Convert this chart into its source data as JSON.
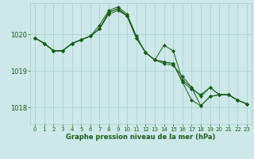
{
  "xlabel": "Graphe pression niveau de la mer (hPa)",
  "background_color": "#cce8e8",
  "grid_color": "#aacccc",
  "line_color": "#1a5c1a",
  "marker_color": "#1a5c1a",
  "xlim": [
    -0.5,
    23.5
  ],
  "ylim": [
    1017.55,
    1020.85
  ],
  "yticks": [
    1018,
    1019,
    1020
  ],
  "xticks": [
    0,
    1,
    2,
    3,
    4,
    5,
    6,
    7,
    8,
    9,
    10,
    11,
    12,
    13,
    14,
    15,
    16,
    17,
    18,
    19,
    20,
    21,
    22,
    23
  ],
  "series": [
    [
      1019.9,
      1019.75,
      1019.55,
      1019.55,
      1019.75,
      1019.85,
      1019.95,
      1020.15,
      1020.55,
      1020.65,
      1020.5,
      1019.9,
      1019.5,
      1019.3,
      1019.2,
      1019.15,
      1018.85,
      1018.55,
      1018.05,
      1018.3,
      1018.35,
      1018.35,
      1018.2,
      1018.1
    ],
    [
      1019.9,
      1019.75,
      1019.55,
      1019.55,
      1019.75,
      1019.85,
      1019.95,
      1020.15,
      1020.6,
      1020.7,
      1020.5,
      1019.9,
      1019.5,
      1019.3,
      1019.25,
      1019.2,
      1018.7,
      1018.5,
      1018.35,
      1018.55,
      1018.35,
      1018.35,
      1018.2,
      1018.1
    ],
    [
      1019.9,
      1019.75,
      1019.55,
      1019.55,
      1019.75,
      1019.85,
      1019.95,
      1020.15,
      1020.6,
      1020.7,
      1020.5,
      1019.9,
      1019.5,
      1019.3,
      1019.25,
      1019.2,
      1018.7,
      1018.2,
      1018.05,
      1018.3,
      1018.35,
      1018.35,
      1018.2,
      1018.1
    ],
    [
      1019.9,
      1019.75,
      1019.55,
      1019.55,
      1019.75,
      1019.85,
      1019.95,
      1020.25,
      1020.65,
      1020.75,
      1020.55,
      1019.95,
      1019.5,
      1019.3,
      1019.7,
      1019.55,
      1018.75,
      1018.55,
      1018.3,
      1018.55,
      1018.35,
      1018.35,
      1018.2,
      1018.1
    ]
  ]
}
